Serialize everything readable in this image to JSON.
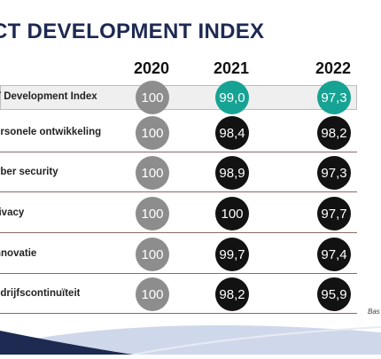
{
  "title": "CT DEVELOPMENT INDEX",
  "years": [
    "2020",
    "2021",
    "2022"
  ],
  "rows": [
    {
      "label": "T Development Index",
      "v2020": "100",
      "v2021": "99,0",
      "v2022": "97,3"
    },
    {
      "label": "ersonele ontwikkeling",
      "v2020": "100",
      "v2021": "98,4",
      "v2022": "98,2"
    },
    {
      "label": "yber security",
      "v2020": "100",
      "v2021": "98,9",
      "v2022": "97,3"
    },
    {
      "label": "rivacy",
      "v2020": "100",
      "v2021": "100",
      "v2022": "97,7"
    },
    {
      "label": "nnovatie",
      "v2020": "100",
      "v2021": "99,7",
      "v2022": "97,4"
    },
    {
      "label": "edrijfscontinuïteit",
      "v2020": "100",
      "v2021": "98,2",
      "v2022": "95,9"
    }
  ],
  "source_text": "Bas",
  "colors": {
    "title": "#1e2a52",
    "baseline_circle": "#8d8d8d",
    "highlight_circle": "#17a393",
    "value_circle": "#121212",
    "footer_wave_dark": "#1e2a52",
    "footer_wave_light": "#cfd8ea"
  }
}
